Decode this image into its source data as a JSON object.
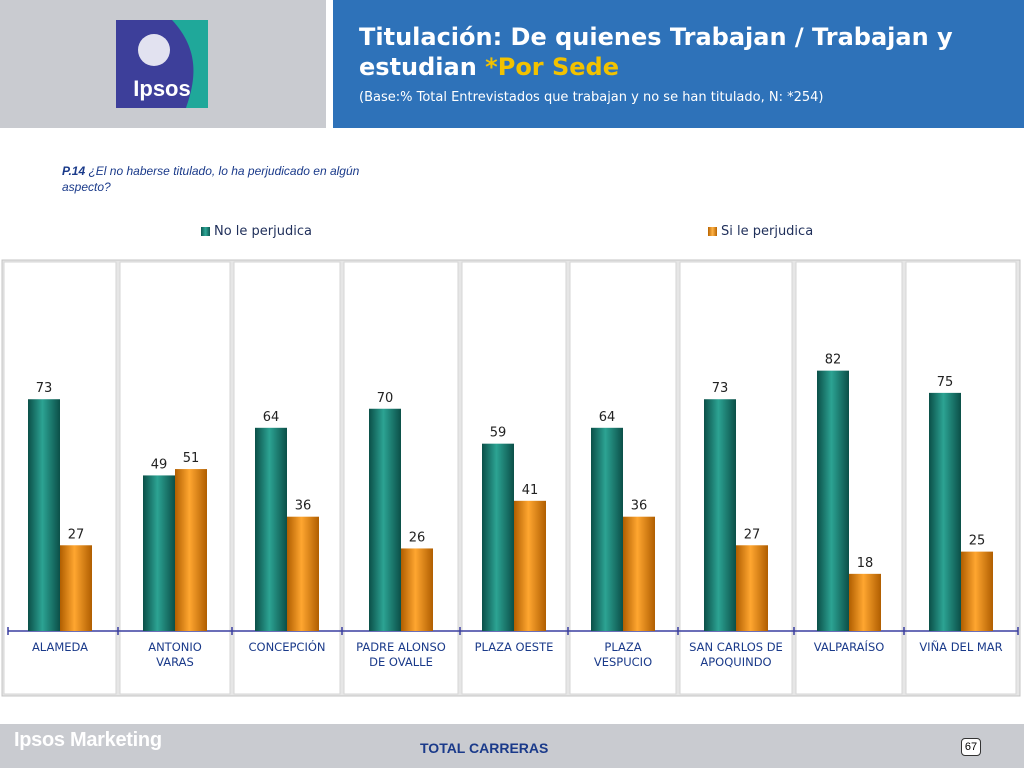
{
  "header": {
    "logo_text": "Ipsos",
    "title_main": "Titulación: De quienes Trabajan / Trabajan y estudian ",
    "title_accent": "*Por Sede",
    "subtitle": "(Base:% Total Entrevistados que  trabajan y no se han titulado, N: *254)"
  },
  "question": {
    "code": "P.14",
    "text": " ¿El no haberse titulado, lo ha perjudicado en algún aspecto?"
  },
  "colors": {
    "teal": "#1a7d73",
    "orange": "#f28a00",
    "header_blue": "#2e72b9",
    "header_gray": "#c9cbd0",
    "accent_yellow": "#f2c200",
    "label_blue": "#1a3a8a"
  },
  "chart_data": {
    "type": "bar",
    "categories": [
      "ALAMEDA",
      "ANTONIO VARAS",
      "CONCEPCIÓN",
      "PADRE ALONSO DE OVALLE",
      "PLAZA OESTE",
      "PLAZA VESPUCIO",
      "SAN CARLOS DE APOQUINDO",
      "VALPARAÍSO",
      "VIÑA DEL MAR"
    ],
    "category_lines": [
      [
        "ALAMEDA"
      ],
      [
        "ANTONIO",
        "VARAS"
      ],
      [
        "CONCEPCIÓN"
      ],
      [
        "PADRE ALONSO",
        "DE OVALLE"
      ],
      [
        "PLAZA OESTE"
      ],
      [
        "PLAZA",
        "VESPUCIO"
      ],
      [
        "SAN CARLOS DE",
        "APOQUINDO"
      ],
      [
        "VALPARAÍSO"
      ],
      [
        "VIÑA DEL MAR"
      ]
    ],
    "series": [
      {
        "name": "No le perjudica",
        "values": [
          73,
          49,
          64,
          70,
          59,
          64,
          73,
          82,
          75
        ]
      },
      {
        "name": "Si le perjudica",
        "values": [
          27,
          51,
          36,
          26,
          41,
          36,
          27,
          18,
          25
        ]
      }
    ],
    "ylim": [
      0,
      100
    ],
    "grid": false,
    "legend_position": "top"
  },
  "footer": {
    "brand": "Ipsos Marketing",
    "center_text": "TOTAL CARRERAS",
    "page_number": "67"
  }
}
